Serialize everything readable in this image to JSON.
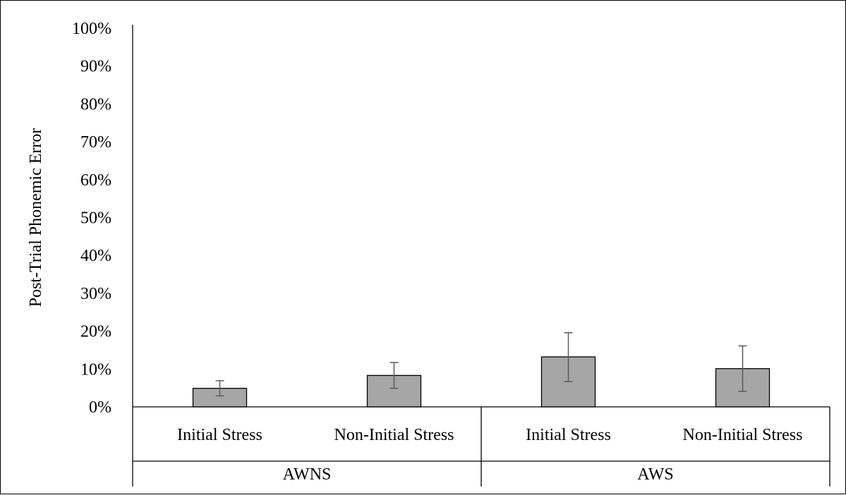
{
  "chart_data": {
    "type": "bar",
    "ylabel": "Post-Trial Phonemic Error",
    "xlabel": "",
    "title": "",
    "ylim": [
      0,
      100
    ],
    "yticks": [
      "0%",
      "10%",
      "20%",
      "30%",
      "40%",
      "50%",
      "60%",
      "70%",
      "80%",
      "90%",
      "100%"
    ],
    "groups": [
      "AWNS",
      "AWS"
    ],
    "categories": [
      "Initial Stress",
      "Non-Initial Stress",
      "Initial Stress",
      "Non-Initial Stress"
    ],
    "values": [
      4.9,
      8.3,
      13.2,
      10.1
    ],
    "error_low": [
      2.9,
      4.9,
      6.7,
      4.1
    ],
    "error_high": [
      6.9,
      11.7,
      19.6,
      16.1
    ],
    "grid": false,
    "bar_color": "#a6a6a6",
    "error_bar_color": "#595959"
  }
}
